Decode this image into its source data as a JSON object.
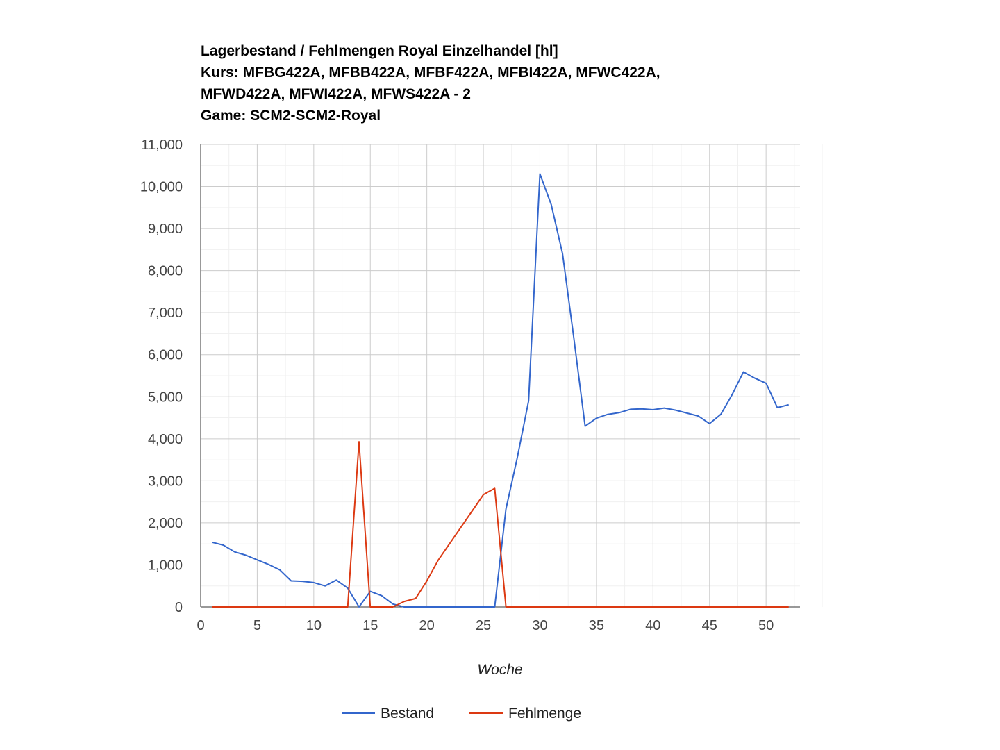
{
  "chart_data": {
    "type": "line",
    "title_lines": [
      "Lagerbestand / Fehlmengen Royal Einzelhandel [hl]",
      "Kurs: MFBG422A, MFBB422A, MFBF422A, MFBI422A, MFWC422A,",
      "MFWD422A, MFWI422A, MFWS422A - 2",
      "Game: SCM2-SCM2-Royal"
    ],
    "xlabel": "Woche",
    "ylabel": "",
    "xlim": [
      0,
      53
    ],
    "ylim": [
      0,
      11000
    ],
    "x_ticks": [
      0,
      5,
      10,
      15,
      20,
      25,
      30,
      35,
      40,
      45,
      50
    ],
    "y_ticks": [
      0,
      1000,
      2000,
      3000,
      4000,
      5000,
      6000,
      7000,
      8000,
      9000,
      10000,
      11000
    ],
    "y_tick_labels": [
      "0",
      "1,000",
      "2,000",
      "3,000",
      "4,000",
      "5,000",
      "6,000",
      "7,000",
      "8,000",
      "9,000",
      "10,000",
      "11,000"
    ],
    "grid": true,
    "legend_position": "bottom",
    "x": [
      1,
      2,
      3,
      4,
      5,
      6,
      7,
      8,
      9,
      10,
      11,
      12,
      13,
      14,
      15,
      16,
      17,
      18,
      19,
      20,
      21,
      22,
      23,
      24,
      25,
      26,
      27,
      28,
      29,
      30,
      31,
      32,
      33,
      34,
      35,
      36,
      37,
      38,
      39,
      40,
      41,
      42,
      43,
      44,
      45,
      46,
      47,
      48,
      49,
      50,
      51,
      52
    ],
    "series": [
      {
        "name": "Bestand",
        "color": "#3366cc",
        "values": [
          1540,
          1470,
          1310,
          1230,
          1120,
          1010,
          880,
          620,
          610,
          580,
          500,
          640,
          450,
          0,
          370,
          270,
          70,
          0,
          0,
          0,
          0,
          0,
          0,
          0,
          0,
          0,
          2330,
          3550,
          4900,
          10300,
          9570,
          8400,
          6400,
          4300,
          4490,
          4580,
          4620,
          4700,
          4710,
          4690,
          4730,
          4680,
          4610,
          4540,
          4360,
          4580,
          5050,
          5590,
          5440,
          5320,
          4740,
          4810
        ]
      },
      {
        "name": "Fehlmenge",
        "color": "#dc3912",
        "values": [
          0,
          0,
          0,
          0,
          0,
          0,
          0,
          0,
          0,
          0,
          0,
          0,
          0,
          3930,
          0,
          0,
          0,
          130,
          200,
          620,
          1110,
          1500,
          1890,
          2280,
          2670,
          2820,
          0,
          0,
          0,
          0,
          0,
          0,
          0,
          0,
          0,
          0,
          0,
          0,
          0,
          0,
          0,
          0,
          0,
          0,
          0,
          0,
          0,
          0,
          0,
          0,
          0,
          0
        ]
      }
    ]
  }
}
